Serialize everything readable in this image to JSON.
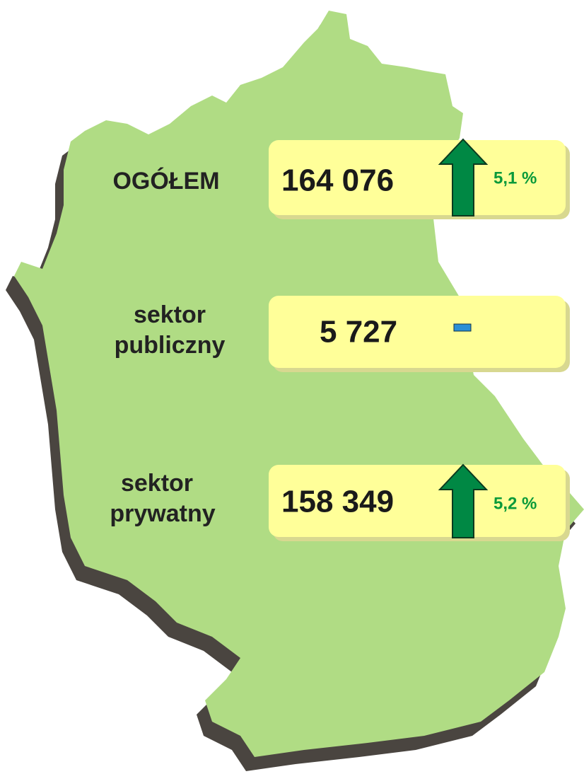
{
  "rows": [
    {
      "label": [
        "OGÓŁEM"
      ],
      "value": "164 076",
      "change": "5,1 %"
    },
    {
      "label": [
        "sektor",
        "publiczny"
      ],
      "value": "5 727",
      "change": null
    },
    {
      "label": [
        "sektor",
        "prywatny"
      ],
      "value": "158 349",
      "change": "5,2 %"
    }
  ]
}
